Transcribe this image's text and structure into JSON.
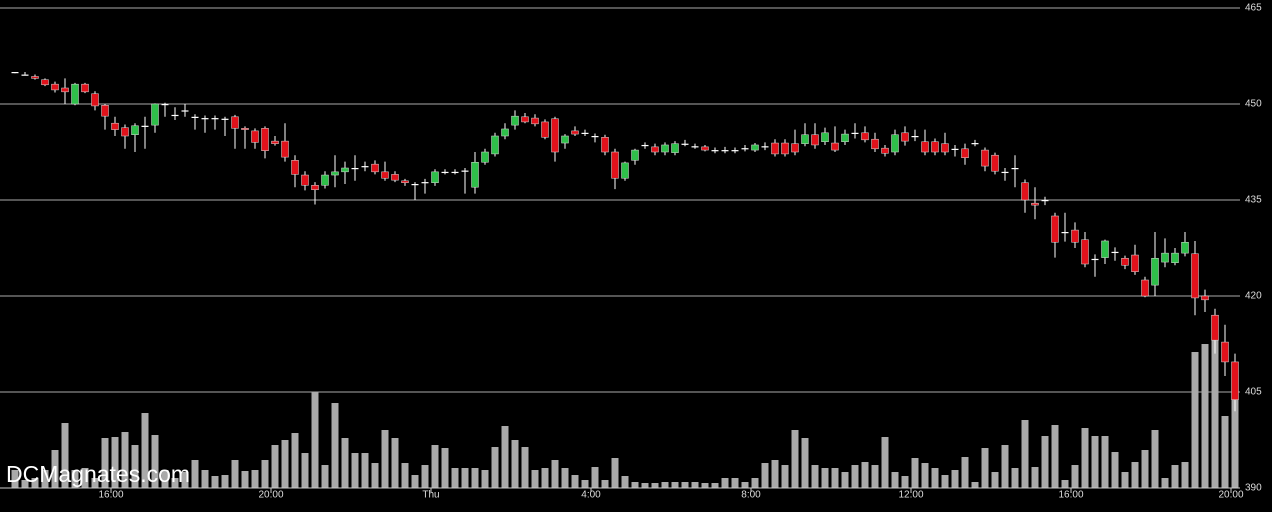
{
  "chart_data": {
    "type": "candlestick",
    "watermark": "DCMagnates.com",
    "up_color": "#2fbf4a",
    "down_color": "#e0121b",
    "wick_color": "#ffffff",
    "volume_color": "#aaaaaa",
    "grid": true,
    "xlim": [
      -1.5,
      122.5
    ],
    "xticks": [
      {
        "value": 9.6,
        "label": "16:00"
      },
      {
        "value": 25.6,
        "label": "20:00"
      },
      {
        "value": 41.6,
        "label": "Thu"
      },
      {
        "value": 57.6,
        "label": "4:00"
      },
      {
        "value": 73.6,
        "label": "8:00"
      },
      {
        "value": 89.6,
        "label": "12:00"
      },
      {
        "value": 105.6,
        "label": "16:00"
      },
      {
        "value": 121.6,
        "label": "20:00"
      }
    ],
    "ylim": [
      390,
      465
    ],
    "yticks": [
      390,
      405,
      420,
      435,
      450,
      465
    ],
    "y2lim": [
      0,
      480
    ],
    "open": [
      455,
      454.6,
      454.3,
      453.8,
      453.1,
      452.5,
      450,
      453.1,
      451.6,
      449.8,
      447,
      446.3,
      445.2,
      446.6,
      446.7,
      450,
      448.3,
      449,
      448,
      447.8,
      447.8,
      447.7,
      448,
      446.2,
      445.8,
      446.2,
      444.2,
      444.2,
      441.2,
      438.9,
      437.3,
      437.3,
      438.9,
      439.4,
      440,
      440.3,
      440.6,
      439.4,
      439,
      438,
      437.5,
      437.8,
      437.7,
      439.4,
      439.4,
      439.6,
      437,
      440.9,
      442.2,
      445,
      446.7,
      448,
      447.8,
      447.2,
      447.7,
      443.9,
      445.8,
      445.5,
      445,
      444.8,
      442.5,
      438.4,
      441.2,
      443.6,
      443.3,
      442.5,
      442.4,
      443.8,
      443.4,
      443.3,
      442.8,
      442.8,
      442.8,
      443.1,
      442.8,
      443.4,
      443.9,
      443.9,
      443.8,
      443.8,
      445.2,
      444.1,
      443.9,
      444.1,
      445.5,
      445.5,
      444.5,
      443.1,
      442.5,
      445.5,
      445,
      444.1,
      444.1,
      443.8,
      443,
      443,
      443.9,
      442.8,
      442,
      439.4,
      440,
      437.7,
      434.5,
      435,
      432.5,
      430,
      430.3,
      428.8,
      425.8,
      426,
      426.9,
      425.9,
      426.4,
      422.5,
      421.7,
      425.3,
      425.2,
      426.7,
      426.6,
      420,
      417,
      412.8,
      409.7
    ],
    "high": [
      455,
      455,
      454.6,
      454,
      453.5,
      454,
      453.3,
      453.3,
      452,
      450,
      448,
      446.8,
      447,
      448,
      450.1,
      450.2,
      449.5,
      450,
      448.4,
      448.2,
      448.2,
      448,
      448.3,
      446.5,
      446.2,
      446.5,
      445,
      447,
      442,
      439.5,
      437.8,
      439.5,
      442,
      441,
      442,
      441,
      441.2,
      441,
      439.5,
      438.3,
      437.8,
      438.3,
      439.8,
      439.8,
      439.8,
      440,
      442.5,
      443,
      445.5,
      447,
      449,
      448.6,
      448.4,
      447.6,
      448,
      445.3,
      446.5,
      446,
      445.4,
      445.2,
      443,
      441,
      443,
      444,
      443.8,
      444,
      444.2,
      444.4,
      443.8,
      443.6,
      443.2,
      443.3,
      443.2,
      443.6,
      443.9,
      444,
      444.5,
      444.5,
      446,
      447,
      447,
      446.3,
      446.5,
      446,
      447,
      446.5,
      445.5,
      443.6,
      446,
      446.5,
      446,
      446,
      444.6,
      445.5,
      443.6,
      443.8,
      444.4,
      443.2,
      442.4,
      440,
      442,
      438.2,
      437,
      435.5,
      433,
      433,
      431.5,
      430,
      426.5,
      428.8,
      427.6,
      426.3,
      428,
      423,
      430,
      429,
      427.5,
      430,
      428.6,
      421,
      418,
      415.5,
      411
    ],
    "low": [
      454.8,
      454.6,
      453.8,
      452.8,
      451.8,
      450,
      449.8,
      451.7,
      449,
      446,
      445,
      443,
      442.5,
      443,
      445.5,
      448,
      447.5,
      448,
      446,
      445.5,
      446,
      445,
      443,
      443,
      443,
      441.5,
      443.5,
      441,
      437,
      436.5,
      434.3,
      436.8,
      437,
      437.5,
      438,
      439.5,
      439,
      438,
      437.8,
      437.2,
      435,
      436,
      437.2,
      439,
      439,
      436,
      436,
      440.5,
      441.8,
      444.5,
      446,
      447,
      446.5,
      444.5,
      441,
      443,
      445,
      445,
      444,
      442,
      436.7,
      438,
      440.5,
      443,
      442,
      442,
      442,
      443.4,
      443,
      442.6,
      442.3,
      442.3,
      442.3,
      442.6,
      442.5,
      442.8,
      441.8,
      441.8,
      442,
      443.4,
      443,
      443.6,
      442.5,
      443.6,
      444.6,
      444,
      442.5,
      441.8,
      442,
      443.5,
      444.2,
      442,
      442,
      442,
      441.8,
      440.5,
      443.4,
      439.5,
      439,
      438,
      437,
      433,
      432,
      434.2,
      426,
      428.5,
      427.5,
      424.5,
      423,
      425,
      425.5,
      424.2,
      423.3,
      419.8,
      420,
      424.5,
      424.8,
      426.2,
      417,
      417.5,
      411,
      407.5,
      402
    ],
    "close": [
      455,
      454.6,
      454,
      453,
      452.2,
      451.9,
      453.1,
      451.9,
      449.7,
      448.1,
      446,
      445,
      446.6,
      446.6,
      450,
      450,
      448.3,
      449,
      448,
      447.8,
      447.8,
      447.7,
      446.2,
      446,
      444,
      442.7,
      443.8,
      441.7,
      439,
      437.3,
      436.6,
      438.9,
      439.4,
      440,
      440,
      440.3,
      439.4,
      438.4,
      438.1,
      437.7,
      437.5,
      437.8,
      439.4,
      439.4,
      439.4,
      439.6,
      440.9,
      442.5,
      445,
      446.1,
      448.1,
      447.2,
      446.9,
      444.8,
      442.5,
      445,
      445.3,
      445.5,
      445,
      442.5,
      438.4,
      440.8,
      442.8,
      443.6,
      442.5,
      443.6,
      443.8,
      443.8,
      443.4,
      442.8,
      442.8,
      442.8,
      442.8,
      443.1,
      443.6,
      443.4,
      442.2,
      442.2,
      442.5,
      445.2,
      443.6,
      445.5,
      442.8,
      445.3,
      445.5,
      444.4,
      443,
      442.3,
      445.2,
      444.2,
      445,
      442.5,
      442.5,
      442.5,
      443,
      441.6,
      443.9,
      440.3,
      439.5,
      439.4,
      440,
      435,
      434.2,
      435,
      428.4,
      430,
      428.4,
      425,
      425.8,
      428.6,
      426.9,
      424.8,
      423.8,
      420,
      425.9,
      426.7,
      426.7,
      428.4,
      419.7,
      419.4,
      413.1,
      409.7,
      403.8
    ],
    "volume": [
      18,
      8,
      10,
      18,
      38,
      65,
      18,
      20,
      10,
      50,
      51,
      56,
      43,
      75,
      53,
      18,
      10,
      16,
      28,
      18,
      12,
      13,
      28,
      17,
      18,
      28,
      43,
      48,
      55,
      35,
      96,
      23,
      85,
      50,
      35,
      35,
      25,
      58,
      50,
      25,
      13,
      23,
      43,
      40,
      20,
      20,
      20,
      18,
      41,
      62,
      48,
      41,
      18,
      20,
      28,
      20,
      13,
      8,
      21,
      8,
      30,
      12,
      6,
      5,
      5,
      6,
      6,
      6,
      6,
      5,
      5,
      10,
      10,
      6,
      10,
      25,
      28,
      23,
      58,
      50,
      23,
      20,
      20,
      16,
      23,
      26,
      23,
      51,
      16,
      12,
      30,
      25,
      20,
      13,
      18,
      31,
      6,
      40,
      16,
      43,
      20,
      68,
      21,
      52,
      63,
      8,
      23,
      60,
      52,
      52,
      36,
      16,
      26,
      38,
      58,
      10,
      23,
      26,
      136,
      144,
      148,
      72,
      95
    ]
  }
}
